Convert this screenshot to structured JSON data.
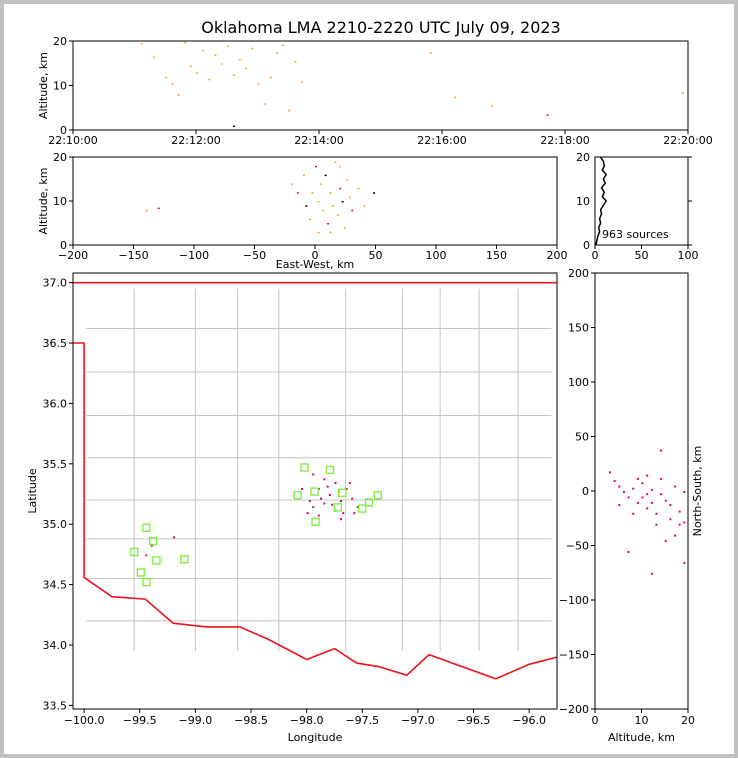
{
  "title": "Oklahoma LMA 2210-2220 UTC July 09, 2023",
  "colors": {
    "state_border": "#e8141e",
    "county": "#c4c4c4",
    "station": "#80f040",
    "early_source": "#f5a623",
    "late_source": "#e0007a",
    "dark_source": "#000000"
  },
  "chart_data": [
    {
      "id": "time_altitude",
      "type": "scatter",
      "xlabel": "",
      "ylabel": "Altitude, km",
      "x_ticks": [
        "22:10:00",
        "22:12:00",
        "22:14:00",
        "22:16:00",
        "22:18:00",
        "22:20:00"
      ],
      "ylim": [
        0,
        20
      ],
      "y_ticks": [
        0,
        10,
        20
      ],
      "points": [
        [
          1.1,
          19.6
        ],
        [
          1.3,
          16.5
        ],
        [
          1.5,
          12.0
        ],
        [
          1.6,
          10.5
        ],
        [
          1.7,
          8.0
        ],
        [
          1.8,
          19.8
        ],
        [
          1.9,
          14.5
        ],
        [
          2.0,
          13.0
        ],
        [
          2.1,
          18.0
        ],
        [
          2.2,
          11.5
        ],
        [
          2.3,
          17.0
        ],
        [
          2.4,
          15.0
        ],
        [
          2.5,
          19.0
        ],
        [
          2.6,
          12.5
        ],
        [
          2.7,
          16.0
        ],
        [
          2.8,
          14.0
        ],
        [
          2.9,
          18.5
        ],
        [
          3.0,
          10.5
        ],
        [
          3.1,
          6.0
        ],
        [
          3.2,
          12.0
        ],
        [
          3.3,
          17.5
        ],
        [
          3.4,
          19.2
        ],
        [
          3.5,
          4.5
        ],
        [
          3.6,
          15.5
        ],
        [
          3.7,
          11.0
        ],
        [
          2.6,
          1.0
        ],
        [
          5.8,
          17.5
        ],
        [
          6.2,
          7.5
        ],
        [
          6.8,
          5.5
        ],
        [
          7.7,
          3.5
        ],
        [
          9.9,
          8.5
        ]
      ]
    },
    {
      "id": "eastwest_altitude",
      "type": "scatter",
      "xlabel": "East-West, km",
      "ylabel": "Altitude, km",
      "xlim": [
        -200,
        200
      ],
      "x_ticks": [
        -200,
        -150,
        -100,
        -50,
        0,
        50,
        100,
        150,
        200
      ],
      "ylim": [
        0,
        20
      ],
      "y_ticks": [
        0,
        10,
        20
      ],
      "points": [
        [
          -20,
          14
        ],
        [
          -15,
          12
        ],
        [
          -10,
          16
        ],
        [
          -8,
          9
        ],
        [
          -5,
          6
        ],
        [
          -3,
          12
        ],
        [
          0,
          18
        ],
        [
          2,
          10
        ],
        [
          4,
          14
        ],
        [
          6,
          8
        ],
        [
          8,
          16
        ],
        [
          10,
          5
        ],
        [
          12,
          12
        ],
        [
          14,
          9
        ],
        [
          16,
          19
        ],
        [
          18,
          7
        ],
        [
          20,
          13
        ],
        [
          22,
          10
        ],
        [
          24,
          4
        ],
        [
          26,
          15
        ],
        [
          28,
          11
        ],
        [
          30,
          8
        ],
        [
          35,
          13
        ],
        [
          40,
          9
        ],
        [
          48,
          12
        ],
        [
          -140,
          8
        ],
        [
          -130,
          8.5
        ],
        [
          2,
          3
        ],
        [
          12,
          3
        ],
        [
          20,
          18
        ]
      ]
    },
    {
      "id": "altitude_histogram",
      "type": "line",
      "xlim": [
        0,
        100
      ],
      "x_ticks": [
        0,
        50,
        100
      ],
      "ylim": [
        0,
        20
      ],
      "y_ticks": [
        0,
        10,
        20
      ],
      "annotation": "963 sources",
      "profile": [
        [
          1,
          0
        ],
        [
          2,
          1
        ],
        [
          3,
          2
        ],
        [
          5,
          3
        ],
        [
          4,
          4
        ],
        [
          6,
          5
        ],
        [
          5,
          6
        ],
        [
          7,
          7
        ],
        [
          6,
          8
        ],
        [
          9,
          9
        ],
        [
          12,
          10
        ],
        [
          8,
          11
        ],
        [
          10,
          12
        ],
        [
          7,
          13
        ],
        [
          11,
          14
        ],
        [
          9,
          15
        ],
        [
          12,
          16
        ],
        [
          8,
          17
        ],
        [
          10,
          18
        ],
        [
          9,
          19
        ],
        [
          6,
          20
        ]
      ]
    },
    {
      "id": "plan_view",
      "type": "scatter",
      "xlabel": "Longitude",
      "ylabel": "Latitude",
      "xlim": [
        -100.1,
        -95.75
      ],
      "x_ticks": [
        -100.0,
        -99.5,
        -99.0,
        -98.5,
        -98.0,
        -97.5,
        -97.0,
        -96.5,
        -96.0
      ],
      "x_tick_labels": [
        "−100.0",
        "−99.5",
        "−99.0",
        "−98.5",
        "−98.0",
        "−97.5",
        "−97.0",
        "−96.5",
        "−96.0"
      ],
      "ylim": [
        33.47,
        37.08
      ],
      "y_ticks": [
        33.5,
        34.0,
        34.5,
        35.0,
        35.5,
        36.0,
        36.5,
        37.0
      ],
      "y_tick_labels": [
        "33.5",
        "34.0",
        "34.5",
        "35.0",
        "35.5",
        "36.0",
        "36.5",
        "37.0"
      ],
      "stations": [
        [
          -98.02,
          35.47
        ],
        [
          -97.79,
          35.45
        ],
        [
          -98.08,
          35.24
        ],
        [
          -97.93,
          35.27
        ],
        [
          -97.68,
          35.26
        ],
        [
          -97.36,
          35.24
        ],
        [
          -97.44,
          35.18
        ],
        [
          -97.5,
          35.13
        ],
        [
          -97.72,
          35.14
        ],
        [
          -97.92,
          35.02
        ],
        [
          -99.44,
          34.97
        ],
        [
          -99.38,
          34.86
        ],
        [
          -99.55,
          34.77
        ],
        [
          -99.35,
          34.7
        ],
        [
          -99.1,
          34.71
        ],
        [
          -99.49,
          34.6
        ],
        [
          -99.44,
          34.52
        ]
      ],
      "sources": [
        [
          -97.95,
          35.42
        ],
        [
          -97.85,
          35.38
        ],
        [
          -97.75,
          35.35
        ],
        [
          -97.9,
          35.3
        ],
        [
          -97.8,
          35.25
        ],
        [
          -97.7,
          35.2
        ],
        [
          -97.85,
          35.18
        ],
        [
          -97.95,
          35.15
        ],
        [
          -97.65,
          35.3
        ],
        [
          -97.6,
          35.22
        ],
        [
          -97.75,
          35.12
        ],
        [
          -97.9,
          35.08
        ],
        [
          -98.0,
          35.1
        ],
        [
          -97.7,
          35.05
        ],
        [
          -97.55,
          35.15
        ],
        [
          -97.82,
          35.32
        ],
        [
          -97.72,
          35.28
        ],
        [
          -97.88,
          35.22
        ],
        [
          -97.78,
          35.17
        ],
        [
          -97.68,
          35.1
        ],
        [
          -98.05,
          35.3
        ],
        [
          -97.62,
          35.35
        ],
        [
          -97.98,
          35.2
        ],
        [
          -97.58,
          35.1
        ],
        [
          -99.4,
          34.83
        ],
        [
          -99.45,
          34.75
        ],
        [
          -99.2,
          34.9
        ]
      ]
    },
    {
      "id": "altitude_northsouth",
      "type": "scatter",
      "xlabel": "Altitude, km",
      "ylabel": "North-South, km",
      "xlim": [
        0,
        20
      ],
      "x_ticks": [
        0,
        10,
        20
      ],
      "ylim": [
        -200,
        200
      ],
      "y_ticks": [
        -200,
        -150,
        -100,
        -50,
        0,
        50,
        100,
        150,
        200
      ],
      "y_tick_labels": [
        "−200",
        "−150",
        "−100",
        "−50",
        "0",
        "50",
        "100",
        "150",
        "200"
      ],
      "points": [
        [
          4,
          10
        ],
        [
          5,
          5
        ],
        [
          6,
          0
        ],
        [
          7,
          -5
        ],
        [
          8,
          3
        ],
        [
          9,
          -10
        ],
        [
          10,
          8
        ],
        [
          11,
          -15
        ],
        [
          12,
          2
        ],
        [
          13,
          -20
        ],
        [
          14,
          12
        ],
        [
          15,
          -8
        ],
        [
          16,
          -25
        ],
        [
          17,
          5
        ],
        [
          18,
          -30
        ],
        [
          19,
          0
        ],
        [
          8,
          -20
        ],
        [
          10,
          -5
        ],
        [
          12,
          -10
        ],
        [
          14,
          -2
        ],
        [
          16,
          -12
        ],
        [
          18,
          -18
        ],
        [
          11,
          15
        ],
        [
          13,
          -30
        ],
        [
          15,
          -45
        ],
        [
          17,
          -40
        ],
        [
          19,
          -28
        ],
        [
          7,
          -55
        ],
        [
          12,
          -75
        ],
        [
          14,
          38
        ],
        [
          19,
          -65
        ],
        [
          3,
          18
        ],
        [
          5,
          -12
        ],
        [
          9,
          12
        ],
        [
          11,
          -2
        ]
      ]
    }
  ]
}
